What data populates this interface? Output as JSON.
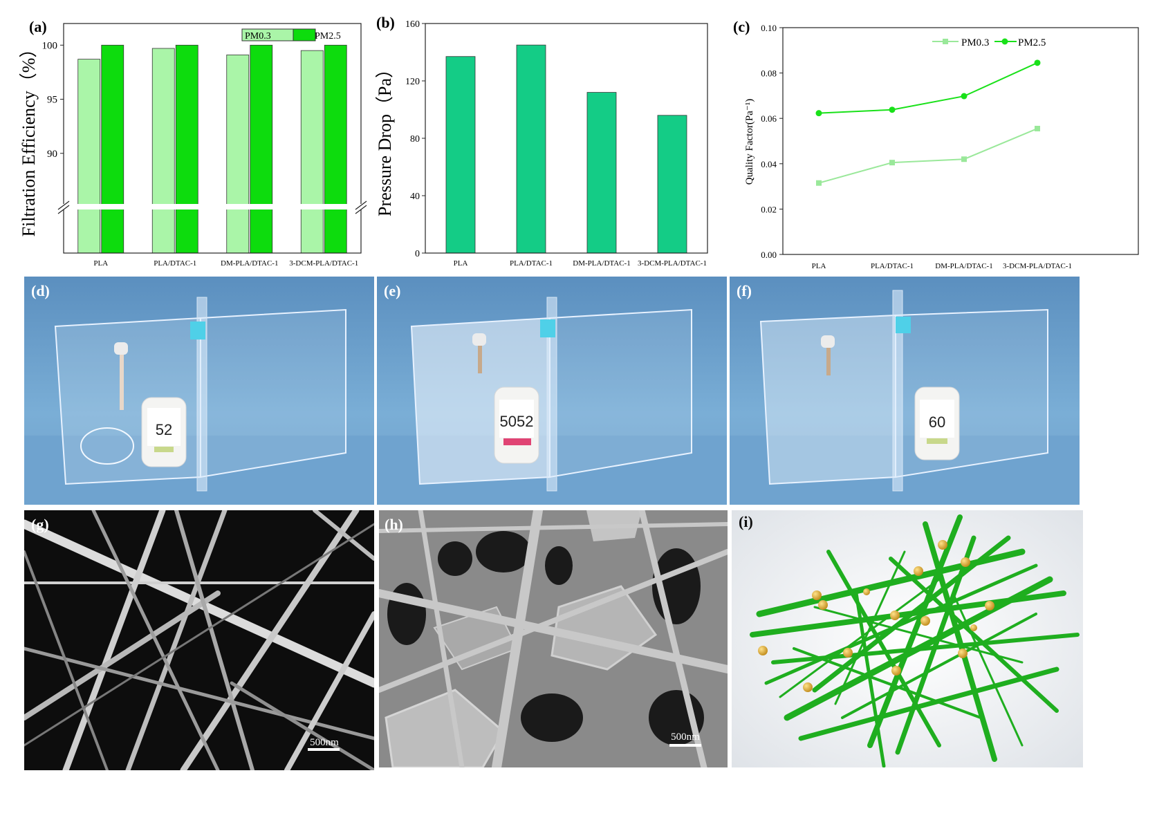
{
  "panels": {
    "a": {
      "label": "(a)"
    },
    "b": {
      "label": "(b)"
    },
    "c": {
      "label": "(c)"
    },
    "d": {
      "label": "(d)",
      "readout": "52"
    },
    "e": {
      "label": "(e)",
      "readout": "5052"
    },
    "f": {
      "label": "(f)",
      "readout": "60"
    },
    "g": {
      "label": "(g)",
      "scale": "500nm"
    },
    "h": {
      "label": "(h)",
      "scale": "500nm"
    },
    "i": {
      "label": "(i)"
    }
  },
  "colors": {
    "pm03": "#aaf5a8",
    "pm25": "#0ddc0d",
    "pressure": "#14cc86",
    "line_pm03": "#9ae89a",
    "line_pm25": "#19e119"
  },
  "chart_data": [
    {
      "id": "a",
      "type": "bar",
      "ylabel": "Filtration Efficiency（%）",
      "categories": [
        "PLA",
        "PLA/DTAC-1",
        "DM-PLA/DTAC-1",
        "3-DCM-PLA/DTAC-1"
      ],
      "series": [
        {
          "name": "PM0.3",
          "values": [
            98.7,
            99.7,
            99.1,
            99.5
          ]
        },
        {
          "name": "PM2.5",
          "values": [
            100.0,
            100.0,
            100.0,
            100.0
          ]
        }
      ],
      "yticks": [
        "90",
        "95",
        "100"
      ],
      "ylim": [
        85,
        102
      ],
      "axis_break": true,
      "legend": "top-right"
    },
    {
      "id": "b",
      "type": "bar",
      "ylabel": "Pressure Drop（Pa）",
      "categories": [
        "PLA",
        "PLA/DTAC-1",
        "DM-PLA/DTAC-1",
        "3-DCM-PLA/DTAC-1"
      ],
      "values": [
        137,
        145,
        112,
        96
      ],
      "yticks": [
        "0",
        "40",
        "80",
        "120",
        "160"
      ],
      "ylim": [
        0,
        160
      ]
    },
    {
      "id": "c",
      "type": "line",
      "ylabel": "Quality Factor(Pa⁻¹)",
      "categories": [
        "PLA",
        "PLA/DTAC-1",
        "DM-PLA/DTAC-1",
        "3-DCM-PLA/DTAC-1"
      ],
      "series": [
        {
          "name": "PM0.3",
          "marker": "square",
          "values": [
            0.0315,
            0.0405,
            0.042,
            0.0555
          ]
        },
        {
          "name": "PM2.5",
          "marker": "circle",
          "values": [
            0.0623,
            0.0638,
            0.0698,
            0.0845
          ]
        }
      ],
      "yticks": [
        "0.00",
        "0.02",
        "0.04",
        "0.06",
        "0.08",
        "0.10"
      ],
      "ylim": [
        0,
        0.1
      ],
      "legend": "top-right"
    }
  ]
}
